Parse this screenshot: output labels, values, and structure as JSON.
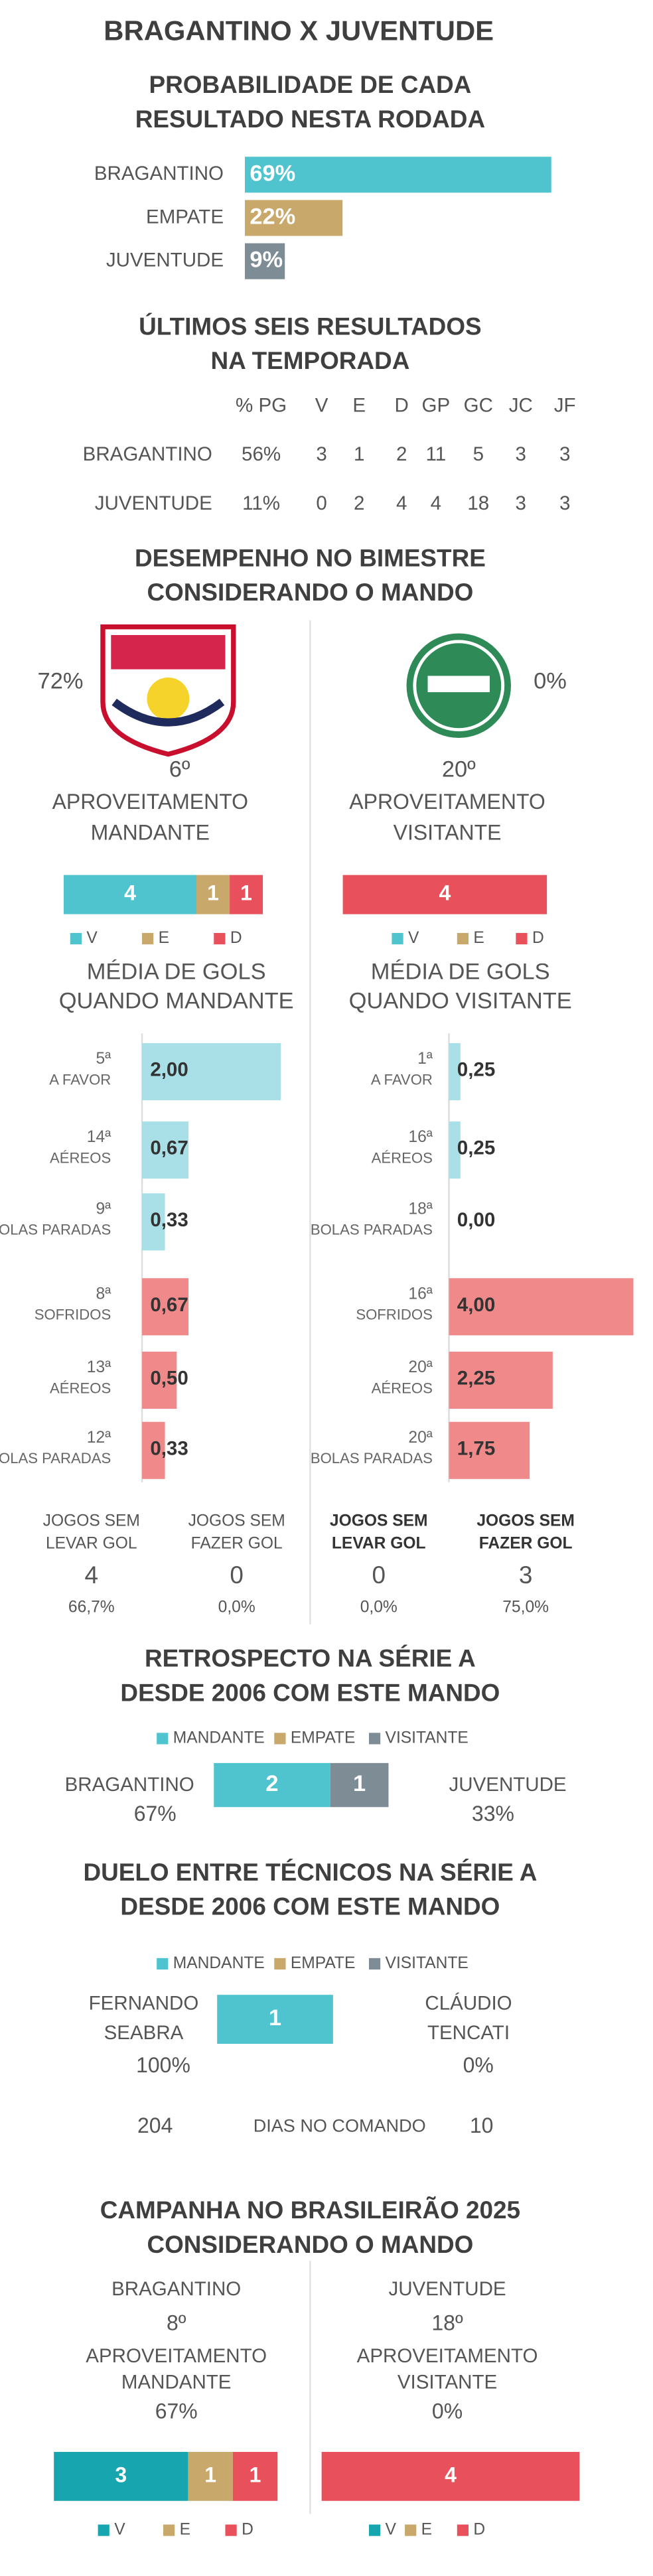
{
  "title": "BRAGANTINO X JUVENTUDE",
  "probability": {
    "title": [
      "PROBABILIDADE DE CADA",
      "RESULTADO NESTA RODADA"
    ],
    "categories": [
      "BRAGANTINO",
      "EMPATE",
      "JUVENTUDE"
    ],
    "values": [
      69,
      22,
      9
    ],
    "value_labels": [
      "69%",
      "22%",
      "9%"
    ],
    "colors": [
      "#4fc4cf",
      "#c8a96b",
      "#7e8c96"
    ]
  },
  "last_six": {
    "title": [
      "ÚLTIMOS SEIS RESULTADOS",
      "NA TEMPORADA"
    ],
    "columns": [
      "% PG",
      "V",
      "E",
      "D",
      "GP",
      "GC",
      "JC",
      "JF"
    ],
    "rows": [
      {
        "team": "BRAGANTINO",
        "cells": [
          "56%",
          3,
          1,
          2,
          11,
          5,
          3,
          3
        ]
      },
      {
        "team": "JUVENTUDE",
        "cells": [
          "11%",
          0,
          2,
          4,
          4,
          18,
          3,
          3
        ]
      }
    ]
  },
  "performance": {
    "title": [
      "DESEMPENHO NO BIMESTRE",
      "CONSIDERANDO O MANDO"
    ],
    "legend": [
      "V",
      "E",
      "D"
    ],
    "colors": [
      "#4fc4cf",
      "#c8a96b",
      "#e8505b"
    ],
    "goal_colors": [
      "#a9dfe6",
      "#f08a8a"
    ],
    "teams": [
      {
        "percent": "72%",
        "rank": "6º",
        "label": [
          "APROVEITAMENTO",
          "MANDANTE"
        ],
        "results": [
          4,
          1,
          1
        ],
        "goals_title": [
          "MÉDIA DE GOLS",
          "QUANDO MANDANTE"
        ],
        "goals": [
          {
            "rank": "5ª",
            "label": "A FAVOR",
            "value": 2.0,
            "value_label": "2,00"
          },
          {
            "rank": "14ª",
            "label": "AÉREOS",
            "value": 0.67,
            "value_label": "0,67"
          },
          {
            "rank": "9ª",
            "label": "BOLAS PARADAS",
            "value": 0.33,
            "value_label": "0,33"
          },
          {
            "rank": "8ª",
            "label": "SOFRIDOS",
            "value": 0.67,
            "value_label": "0,67"
          },
          {
            "rank": "13ª",
            "label": "AÉREOS",
            "value": 0.5,
            "value_label": "0,50"
          },
          {
            "rank": "12ª",
            "label": "BOLAS PARADAS",
            "value": 0.33,
            "value_label": "0,33"
          }
        ],
        "clean": [
          {
            "label": [
              "JOGOS SEM",
              "LEVAR GOL"
            ],
            "value": 4,
            "percent": "66,7%"
          },
          {
            "label": [
              "JOGOS SEM",
              "FAZER GOL"
            ],
            "value": 0,
            "percent": "0,0%"
          }
        ]
      },
      {
        "percent": "0%",
        "rank": "20º",
        "label": [
          "APROVEITAMENTO",
          "VISITANTE"
        ],
        "results": [
          0,
          0,
          4
        ],
        "goals_title": [
          "MÉDIA DE GOLS",
          "QUANDO VISITANTE"
        ],
        "goals": [
          {
            "rank": "1ª",
            "label": "A FAVOR",
            "value": 0.25,
            "value_label": "0,25"
          },
          {
            "rank": "16ª",
            "label": "AÉREOS",
            "value": 0.25,
            "value_label": "0,25"
          },
          {
            "rank": "18ª",
            "label": "BOLAS PARADAS",
            "value": 0.0,
            "value_label": "0,00"
          },
          {
            "rank": "16ª",
            "label": "SOFRIDOS",
            "value": 4.0,
            "value_label": "4,00"
          },
          {
            "rank": "20ª",
            "label": "AÉREOS",
            "value": 2.25,
            "value_label": "2,25"
          },
          {
            "rank": "20ª",
            "label": "BOLAS PARADAS",
            "value": 1.75,
            "value_label": "1,75"
          }
        ],
        "clean": [
          {
            "label": [
              "JOGOS SEM",
              "LEVAR GOL"
            ],
            "value": 0,
            "percent": "0,0%"
          },
          {
            "label": [
              "JOGOS SEM",
              "FAZER GOL"
            ],
            "value": 3,
            "percent": "75,0%"
          }
        ]
      }
    ]
  },
  "retrospect": {
    "title": [
      "RETROSPECTO NA SÉRIE A",
      "DESDE 2006 COM ESTE MANDO"
    ],
    "legend": [
      "MANDANTE",
      "EMPATE",
      "VISITANTE"
    ],
    "colors": [
      "#4fc4cf",
      "#c8a96b",
      "#7e8c96"
    ],
    "values": [
      2,
      0,
      1
    ],
    "home": {
      "team": "BRAGANTINO",
      "percent": "67%"
    },
    "away": {
      "team": "JUVENTUDE",
      "percent": "33%"
    }
  },
  "duel": {
    "title": [
      "DUELO ENTRE TÉCNICOS NA SÉRIE A",
      "DESDE 2006 COM ESTE MANDO"
    ],
    "legend": [
      "MANDANTE",
      "EMPATE",
      "VISITANTE"
    ],
    "colors": [
      "#4fc4cf",
      "#c8a96b",
      "#7e8c96"
    ],
    "values": [
      1,
      0,
      0
    ],
    "home": {
      "name": [
        "FERNANDO",
        "SEABRA"
      ],
      "percent": "100%",
      "days": 204
    },
    "away": {
      "name": [
        "CLÁUDIO",
        "TENCATI"
      ],
      "percent": "0%",
      "days": 10
    },
    "days_label": "DIAS NO COMANDO"
  },
  "campaign": {
    "title": [
      "CAMPANHA NO BRASILEIRÃO 2025",
      "CONSIDERANDO O MANDO"
    ],
    "legend": [
      "V",
      "E",
      "D"
    ],
    "colors": [
      "#17a5b0",
      "#c8a96b",
      "#e8505b"
    ],
    "teams": [
      {
        "team": "BRAGANTINO",
        "rank": "8º",
        "label": [
          "APROVEITAMENTO",
          "MANDANTE"
        ],
        "percent": "67%",
        "results": [
          3,
          1,
          1
        ]
      },
      {
        "team": "JUVENTUDE",
        "rank": "18º",
        "label": [
          "APROVEITAMENTO",
          "VISITANTE"
        ],
        "percent": "0%",
        "results": [
          0,
          0,
          4
        ]
      }
    ]
  }
}
